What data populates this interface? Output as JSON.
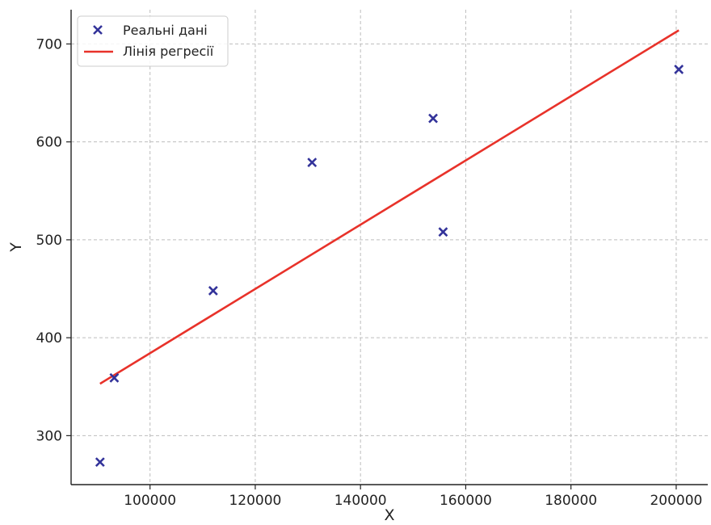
{
  "chart_data": {
    "type": "scatter",
    "xlabel": "X",
    "ylabel": "Y",
    "xlim": [
      85000,
      206000
    ],
    "ylim": [
      250,
      735
    ],
    "x_ticks": [
      100000,
      120000,
      140000,
      160000,
      180000,
      200000
    ],
    "y_ticks": [
      300,
      400,
      500,
      600,
      700
    ],
    "grid": true,
    "legend_position": "top-left",
    "series": [
      {
        "name": "Реальні дані",
        "kind": "scatter",
        "marker": "x",
        "color": "#33339a",
        "points": [
          {
            "x": 90500,
            "y": 273
          },
          {
            "x": 93200,
            "y": 359
          },
          {
            "x": 112000,
            "y": 448
          },
          {
            "x": 130800,
            "y": 579
          },
          {
            "x": 153800,
            "y": 624
          },
          {
            "x": 155700,
            "y": 508
          },
          {
            "x": 200500,
            "y": 674
          }
        ]
      },
      {
        "name": "Лінія регресії",
        "kind": "line",
        "color": "#e8322a",
        "points": [
          {
            "x": 90500,
            "y": 353
          },
          {
            "x": 200500,
            "y": 714
          }
        ]
      }
    ]
  }
}
